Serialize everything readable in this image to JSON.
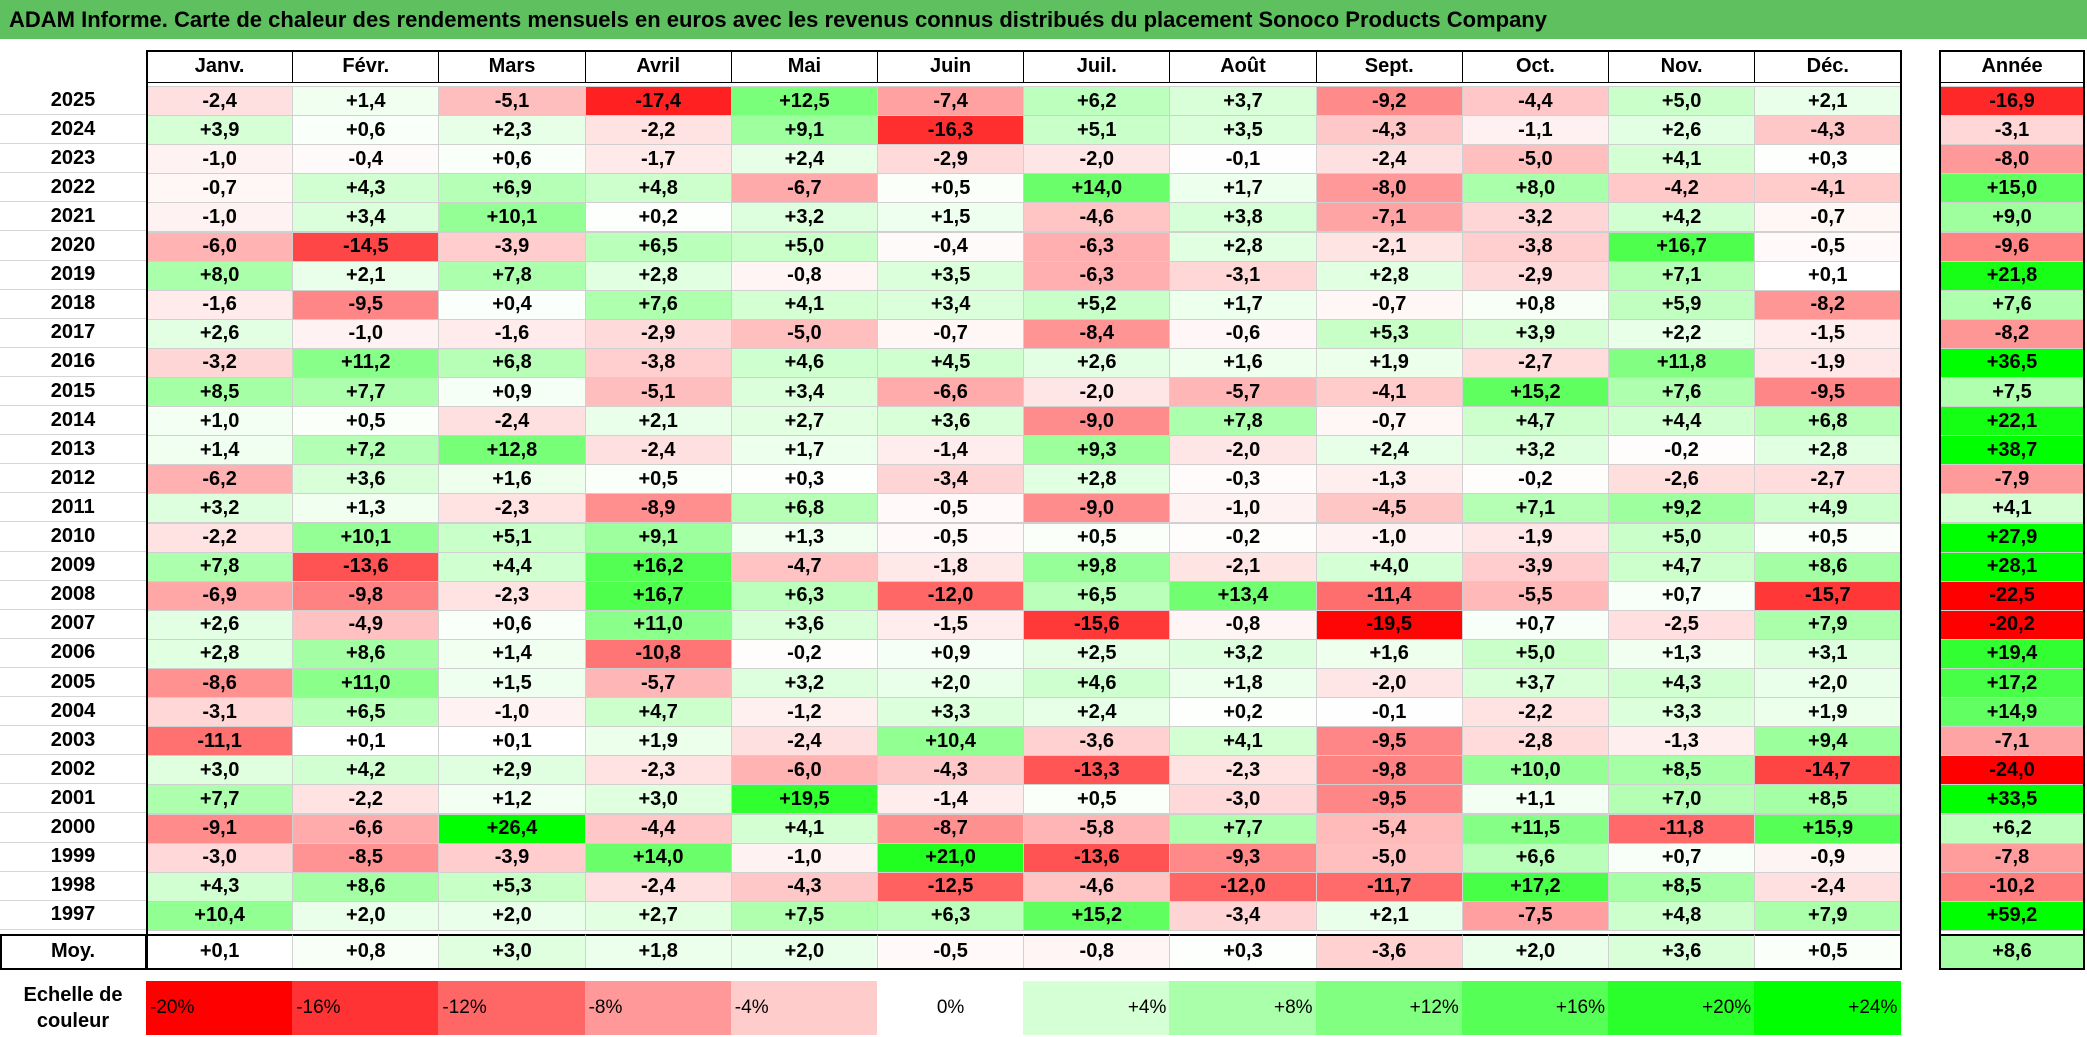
{
  "title": "ADAM Informe. Carte de chaleur des rendements mensuels en euros avec les revenus connus distribués du placement Sonoco Products Company",
  "chart_data": {
    "type": "heatmap",
    "months": [
      "Janv.",
      "Févr.",
      "Mars",
      "Avril",
      "Mai",
      "Juin",
      "Juil.",
      "Août",
      "Sept.",
      "Oct.",
      "Nov.",
      "Déc."
    ],
    "annual_label": "Année",
    "rows": [
      {
        "year": "2025",
        "values": [
          "-2,4",
          "+1,4",
          "-5,1",
          "-17,4",
          "+12,5",
          "-7,4",
          "+6,2",
          "+3,7",
          "-9,2",
          "-4,4",
          "+5,0",
          "+2,1"
        ],
        "annual": "-16,9"
      },
      {
        "year": "2024",
        "values": [
          "+3,9",
          "+0,6",
          "+2,3",
          "-2,2",
          "+9,1",
          "-16,3",
          "+5,1",
          "+3,5",
          "-4,3",
          "-1,1",
          "+2,6",
          "-4,3"
        ],
        "annual": "-3,1"
      },
      {
        "year": "2023",
        "values": [
          "-1,0",
          "-0,4",
          "+0,6",
          "-1,7",
          "+2,4",
          "-2,9",
          "-2,0",
          "-0,1",
          "-2,4",
          "-5,0",
          "+4,1",
          "+0,3"
        ],
        "annual": "-8,0"
      },
      {
        "year": "2022",
        "values": [
          "-0,7",
          "+4,3",
          "+6,9",
          "+4,8",
          "-6,7",
          "+0,5",
          "+14,0",
          "+1,7",
          "-8,0",
          "+8,0",
          "-4,2",
          "-4,1"
        ],
        "annual": "+15,0"
      },
      {
        "year": "2021",
        "values": [
          "-1,0",
          "+3,4",
          "+10,1",
          "+0,2",
          "+3,2",
          "+1,5",
          "-4,6",
          "+3,8",
          "-7,1",
          "-3,2",
          "+4,2",
          "-0,7"
        ],
        "annual": "+9,0"
      },
      {
        "year": "2020",
        "values": [
          "-6,0",
          "-14,5",
          "-3,9",
          "+6,5",
          "+5,0",
          "-0,4",
          "-6,3",
          "+2,8",
          "-2,1",
          "-3,8",
          "+16,7",
          "-0,5"
        ],
        "annual": "-9,6"
      },
      {
        "year": "2019",
        "values": [
          "+8,0",
          "+2,1",
          "+7,8",
          "+2,8",
          "-0,8",
          "+3,5",
          "-6,3",
          "-3,1",
          "+2,8",
          "-2,9",
          "+7,1",
          "+0,1"
        ],
        "annual": "+21,8"
      },
      {
        "year": "2018",
        "values": [
          "-1,6",
          "-9,5",
          "+0,4",
          "+7,6",
          "+4,1",
          "+3,4",
          "+5,2",
          "+1,7",
          "-0,7",
          "+0,8",
          "+5,9",
          "-8,2"
        ],
        "annual": "+7,6"
      },
      {
        "year": "2017",
        "values": [
          "+2,6",
          "-1,0",
          "-1,6",
          "-2,9",
          "-5,0",
          "-0,7",
          "-8,4",
          "-0,6",
          "+5,3",
          "+3,9",
          "+2,2",
          "-1,5"
        ],
        "annual": "-8,2"
      },
      {
        "year": "2016",
        "values": [
          "-3,2",
          "+11,2",
          "+6,8",
          "-3,8",
          "+4,6",
          "+4,5",
          "+2,6",
          "+1,6",
          "+1,9",
          "-2,7",
          "+11,8",
          "-1,9"
        ],
        "annual": "+36,5"
      },
      {
        "year": "2015",
        "values": [
          "+8,5",
          "+7,7",
          "+0,9",
          "-5,1",
          "+3,4",
          "-6,6",
          "-2,0",
          "-5,7",
          "-4,1",
          "+15,2",
          "+7,6",
          "-9,5"
        ],
        "annual": "+7,5"
      },
      {
        "year": "2014",
        "values": [
          "+1,0",
          "+0,5",
          "-2,4",
          "+2,1",
          "+2,7",
          "+3,6",
          "-9,0",
          "+7,8",
          "-0,7",
          "+4,7",
          "+4,4",
          "+6,8"
        ],
        "annual": "+22,1"
      },
      {
        "year": "2013",
        "values": [
          "+1,4",
          "+7,2",
          "+12,8",
          "-2,4",
          "+1,7",
          "-1,4",
          "+9,3",
          "-2,0",
          "+2,4",
          "+3,2",
          "-0,2",
          "+2,8"
        ],
        "annual": "+38,7"
      },
      {
        "year": "2012",
        "values": [
          "-6,2",
          "+3,6",
          "+1,6",
          "+0,5",
          "+0,3",
          "-3,4",
          "+2,8",
          "-0,3",
          "-1,3",
          "-0,2",
          "-2,6",
          "-2,7"
        ],
        "annual": "-7,9"
      },
      {
        "year": "2011",
        "values": [
          "+3,2",
          "+1,3",
          "-2,3",
          "-8,9",
          "+6,8",
          "-0,5",
          "-9,0",
          "-1,0",
          "-4,5",
          "+7,1",
          "+9,2",
          "+4,9"
        ],
        "annual": "+4,1"
      },
      {
        "year": "2010",
        "values": [
          "-2,2",
          "+10,1",
          "+5,1",
          "+9,1",
          "+1,3",
          "-0,5",
          "+0,5",
          "-0,2",
          "-1,0",
          "-1,9",
          "+5,0",
          "+0,5"
        ],
        "annual": "+27,9"
      },
      {
        "year": "2009",
        "values": [
          "+7,8",
          "-13,6",
          "+4,4",
          "+16,2",
          "-4,7",
          "-1,8",
          "+9,8",
          "-2,1",
          "+4,0",
          "-3,9",
          "+4,7",
          "+8,6"
        ],
        "annual": "+28,1"
      },
      {
        "year": "2008",
        "values": [
          "-6,9",
          "-9,8",
          "-2,3",
          "+16,7",
          "+6,3",
          "-12,0",
          "+6,5",
          "+13,4",
          "-11,4",
          "-5,5",
          "+0,7",
          "-15,7"
        ],
        "annual": "-22,5"
      },
      {
        "year": "2007",
        "values": [
          "+2,6",
          "-4,9",
          "+0,6",
          "+11,0",
          "+3,6",
          "-1,5",
          "-15,6",
          "-0,8",
          "-19,5",
          "+0,7",
          "-2,5",
          "+7,9"
        ],
        "annual": "-20,2"
      },
      {
        "year": "2006",
        "values": [
          "+2,8",
          "+8,6",
          "+1,4",
          "-10,8",
          "-0,2",
          "+0,9",
          "+2,5",
          "+3,2",
          "+1,6",
          "+5,0",
          "+1,3",
          "+3,1"
        ],
        "annual": "+19,4"
      },
      {
        "year": "2005",
        "values": [
          "-8,6",
          "+11,0",
          "+1,5",
          "-5,7",
          "+3,2",
          "+2,0",
          "+4,6",
          "+1,8",
          "-2,0",
          "+3,7",
          "+4,3",
          "+2,0"
        ],
        "annual": "+17,2"
      },
      {
        "year": "2004",
        "values": [
          "-3,1",
          "+6,5",
          "-1,0",
          "+4,7",
          "-1,2",
          "+3,3",
          "+2,4",
          "+0,2",
          "-0,1",
          "-2,2",
          "+3,3",
          "+1,9"
        ],
        "annual": "+14,9"
      },
      {
        "year": "2003",
        "values": [
          "-11,1",
          "+0,1",
          "+0,1",
          "+1,9",
          "-2,4",
          "+10,4",
          "-3,6",
          "+4,1",
          "-9,5",
          "-2,8",
          "-1,3",
          "+9,4"
        ],
        "annual": "-7,1"
      },
      {
        "year": "2002",
        "values": [
          "+3,0",
          "+4,2",
          "+2,9",
          "-2,3",
          "-6,0",
          "-4,3",
          "-13,3",
          "-2,3",
          "-9,8",
          "+10,0",
          "+8,5",
          "-14,7"
        ],
        "annual": "-24,0"
      },
      {
        "year": "2001",
        "values": [
          "+7,7",
          "-2,2",
          "+1,2",
          "+3,0",
          "+19,5",
          "-1,4",
          "+0,5",
          "-3,0",
          "-9,5",
          "+1,1",
          "+7,0",
          "+8,5"
        ],
        "annual": "+33,5"
      },
      {
        "year": "2000",
        "values": [
          "-9,1",
          "-6,6",
          "+26,4",
          "-4,4",
          "+4,1",
          "-8,7",
          "-5,8",
          "+7,7",
          "-5,4",
          "+11,5",
          "-11,8",
          "+15,9"
        ],
        "annual": "+6,2"
      },
      {
        "year": "1999",
        "values": [
          "-3,0",
          "-8,5",
          "-3,9",
          "+14,0",
          "-1,0",
          "+21,0",
          "-13,6",
          "-9,3",
          "-5,0",
          "+6,6",
          "+0,7",
          "-0,9"
        ],
        "annual": "-7,8"
      },
      {
        "year": "1998",
        "values": [
          "+4,3",
          "+8,6",
          "+5,3",
          "-2,4",
          "-4,3",
          "-12,5",
          "-4,6",
          "-12,0",
          "-11,7",
          "+17,2",
          "+8,5",
          "-2,4"
        ],
        "annual": "-10,2"
      },
      {
        "year": "1997",
        "values": [
          "+10,4",
          "+2,0",
          "+2,0",
          "+2,7",
          "+7,5",
          "+6,3",
          "+15,2",
          "-3,4",
          "+2,1",
          "-7,5",
          "+4,8",
          "+7,9"
        ],
        "annual": "+59,2"
      }
    ],
    "average": {
      "label": "Moy.",
      "values": [
        "+0,1",
        "+0,8",
        "+3,0",
        "+1,8",
        "+2,0",
        "-0,5",
        "-0,8",
        "+0,3",
        "-3,6",
        "+2,0",
        "+3,6",
        "+0,5"
      ],
      "annual": "+8,6"
    },
    "legend": {
      "label": "Echelle de couleur",
      "stops": [
        {
          "label": "-20%",
          "value": -20
        },
        {
          "label": "-16%",
          "value": -16
        },
        {
          "label": "-12%",
          "value": -12
        },
        {
          "label": "-8%",
          "value": -8
        },
        {
          "label": "-4%",
          "value": -4
        },
        {
          "label": "0%",
          "value": 0
        },
        {
          "label": "+4%",
          "value": 4
        },
        {
          "label": "+8%",
          "value": 8
        },
        {
          "label": "+12%",
          "value": 12
        },
        {
          "label": "+16%",
          "value": 16
        },
        {
          "label": "+20%",
          "value": 20
        },
        {
          "label": "+24%",
          "value": 24
        }
      ]
    },
    "colors": {
      "negative": "#ff0000",
      "neutral": "#ffffff",
      "positive": "#00ff00"
    }
  }
}
